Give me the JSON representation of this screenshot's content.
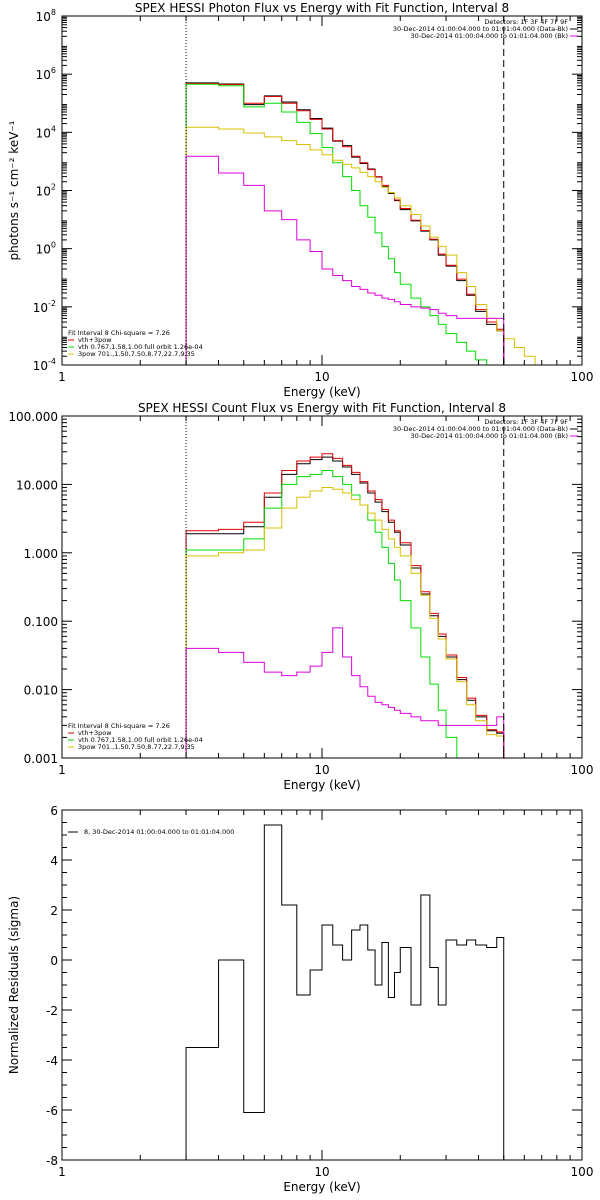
{
  "colors": {
    "total": "#000000",
    "fit": "#e00000",
    "thermal": "#00dd00",
    "powerlaw": "#d8c000",
    "background": "#dd00dd",
    "frame": "#000000"
  },
  "chart_data": [
    {
      "type": "line",
      "title": "SPEX HESSI Photon Flux vs Energy with Fit Function, Interval 8",
      "xlabel": "Energy (keV)",
      "ylabel": "photons s⁻¹ cm⁻² keV⁻¹",
      "xscale": "log",
      "yscale": "log",
      "xlim": [
        1,
        100
      ],
      "ylim": [
        0.0001,
        100000000
      ],
      "xticks": [
        {
          "v": 1,
          "label": "1"
        },
        {
          "v": 10,
          "label": "10"
        },
        {
          "v": 100,
          "label": "100"
        }
      ],
      "yticks": [
        {
          "v": 0.0001,
          "base": "10",
          "exp": "-4"
        },
        {
          "v": 0.01,
          "base": "10",
          "exp": "-2"
        },
        {
          "v": 1,
          "base": "10",
          "exp": "0"
        },
        {
          "v": 100,
          "base": "10",
          "exp": "2"
        },
        {
          "v": 10000,
          "base": "10",
          "exp": "4"
        },
        {
          "v": 1000000,
          "base": "10",
          "exp": "6"
        },
        {
          "v": 100000000,
          "base": "10",
          "exp": "8"
        }
      ],
      "vlines": [
        {
          "x": 3,
          "style": "dotted"
        },
        {
          "x": 50,
          "style": "dashed"
        }
      ],
      "legend_right": [
        {
          "text": "Detectors: 1F 3F 4F 7F 9F",
          "color": ""
        },
        {
          "text": "30-Dec-2014 01:00:04.000 to 01:01:04.000 (Data-Bk)",
          "color": "total"
        },
        {
          "text": "30-Dec-2014 01:00:04.000 to 01:01:04.000 (Bk)",
          "color": "background"
        }
      ],
      "legend_left": [
        {
          "text": "Fit Interval 8    Chi-square = 7.26",
          "color": ""
        },
        {
          "text": "vth+3pow",
          "color": "fit"
        },
        {
          "text": "vth 0.767,1.58,1.00  full orbit 1.26e-04",
          "color": "thermal"
        },
        {
          "text": "3pow 701.,1.50,7.50,8.77,22.7,9.35",
          "color": "powerlaw"
        }
      ],
      "series": [
        {
          "color": "total",
          "edges": [
            3,
            4,
            5,
            6,
            7,
            8,
            9,
            10,
            11,
            12,
            13,
            14,
            15,
            16,
            17,
            18,
            19,
            20,
            22,
            24,
            26,
            28,
            30,
            33,
            36,
            39,
            43,
            47,
            50
          ],
          "values": [
            500000,
            460000,
            90000,
            180000,
            110000,
            60000,
            30000,
            14000,
            5000,
            3500,
            1400,
            850,
            550,
            290,
            140,
            80,
            45,
            22,
            9,
            4,
            2,
            0.6,
            0.25,
            0.08,
            0.025,
            0.007,
            0.0025,
            0.0015
          ]
        },
        {
          "color": "fit",
          "edges": [
            3,
            4,
            5,
            6,
            7,
            8,
            9,
            10,
            11,
            12,
            13,
            14,
            15,
            16,
            17,
            18,
            19,
            20,
            22,
            24,
            26,
            28,
            30,
            33,
            36,
            39,
            43,
            47,
            50
          ],
          "values": [
            480000,
            440000,
            100000,
            170000,
            100000,
            55000,
            28000,
            13000,
            5200,
            3200,
            1500,
            900,
            520,
            300,
            150,
            85,
            47,
            24,
            9.5,
            4.2,
            2.1,
            0.65,
            0.27,
            0.09,
            0.027,
            0.008,
            0.003,
            0.0017
          ]
        },
        {
          "color": "thermal",
          "edges": [
            3,
            4,
            5,
            6,
            7,
            8,
            9,
            10,
            11,
            12,
            13,
            14,
            15,
            16,
            17,
            18,
            19,
            20,
            22,
            24,
            26,
            28,
            30,
            33,
            36,
            39,
            43,
            47,
            50
          ],
          "values": [
            450000,
            400000,
            75000,
            100000,
            50000,
            22000,
            9000,
            3000,
            900,
            300,
            100,
            30,
            12,
            3.5,
            1.2,
            0.45,
            0.15,
            0.06,
            0.02,
            0.01,
            0.005,
            0.0025,
            0.0012,
            0.0006,
            0.0003,
            0.00015,
            0.0001,
            0.0001
          ]
        },
        {
          "color": "powerlaw",
          "edges": [
            3,
            4,
            5,
            6,
            7,
            8,
            9,
            10,
            11,
            12,
            13,
            14,
            15,
            16,
            17,
            18,
            19,
            20,
            22,
            24,
            26,
            28,
            30,
            33,
            36,
            39,
            43,
            47,
            50,
            55,
            60,
            66,
            72,
            80
          ],
          "values": [
            15000,
            13000,
            9500,
            7000,
            5200,
            3800,
            2500,
            1700,
            1100,
            800,
            600,
            420,
            300,
            200,
            130,
            85,
            55,
            30,
            15,
            6,
            2.5,
            1.2,
            0.6,
            0.15,
            0.05,
            0.012,
            0.004,
            0.0015,
            0.0008,
            0.0004,
            0.0002,
            0.0001,
            0.0001
          ]
        },
        {
          "color": "background",
          "edges": [
            3,
            4,
            5,
            6,
            7,
            8,
            9,
            10,
            11,
            12,
            13,
            14,
            15,
            16,
            17,
            18,
            19,
            20,
            22,
            24,
            26,
            28,
            30,
            33,
            36,
            39,
            43,
            47,
            50
          ],
          "values": [
            1500,
            400,
            150,
            20,
            10,
            2,
            0.8,
            0.2,
            0.12,
            0.08,
            0.05,
            0.04,
            0.03,
            0.025,
            0.02,
            0.018,
            0.015,
            0.012,
            0.01,
            0.009,
            0.008,
            0.006,
            0.005,
            0.004,
            0.004,
            0.004,
            0.004,
            0.004
          ]
        }
      ]
    },
    {
      "type": "line",
      "title": "SPEX HESSI Count Flux vs Energy with Fit Function, Interval 8",
      "xlabel": "Energy (keV)",
      "ylabel": "",
      "xscale": "log",
      "yscale": "log",
      "xlim": [
        1,
        100
      ],
      "ylim": [
        0.001,
        100
      ],
      "xticks": [
        {
          "v": 1,
          "label": "1"
        },
        {
          "v": 10,
          "label": "10"
        },
        {
          "v": 100,
          "label": "100"
        }
      ],
      "yticks": [
        {
          "v": 0.001,
          "label": "0.001"
        },
        {
          "v": 0.01,
          "label": "0.010"
        },
        {
          "v": 0.1,
          "label": "0.100"
        },
        {
          "v": 1,
          "label": "1.000"
        },
        {
          "v": 10,
          "label": "10.000"
        },
        {
          "v": 100,
          "label": "100.000"
        }
      ],
      "vlines": [
        {
          "x": 3,
          "style": "dotted"
        },
        {
          "x": 50,
          "style": "dashed"
        }
      ],
      "legend_right": [
        {
          "text": "Detectors: 1F 3F 4F 7F 9F",
          "color": ""
        },
        {
          "text": "30-Dec-2014 01:00:04.000 to 01:01:04.000 (Data-Bk)",
          "color": "total"
        },
        {
          "text": "30-Dec-2014 01:00:04.000 to 01:01:04.000 (Bk)",
          "color": "background"
        }
      ],
      "legend_left": [
        {
          "text": "Fit Interval 8    Chi-square = 7.26",
          "color": ""
        },
        {
          "text": "vth+3pow",
          "color": "fit"
        },
        {
          "text": "vth 0.767,1.58,1.00  full orbit 1.26e-04",
          "color": "thermal"
        },
        {
          "text": "3pow 701.,1.50,7.50,8.77,22.7,9.35",
          "color": "powerlaw"
        }
      ],
      "series": [
        {
          "color": "total",
          "edges": [
            3,
            4,
            5,
            6,
            7,
            8,
            9,
            10,
            11,
            12,
            13,
            14,
            15,
            16,
            17,
            18,
            19,
            20,
            22,
            24,
            26,
            28,
            30,
            33,
            36,
            39,
            43,
            47,
            50
          ],
          "values": [
            1.9,
            1.9,
            2.4,
            6.5,
            14,
            20,
            23,
            25,
            22,
            18,
            14,
            10.5,
            7.5,
            5.5,
            4,
            2.8,
            2,
            1.3,
            0.6,
            0.25,
            0.12,
            0.06,
            0.03,
            0.014,
            0.007,
            0.004,
            0.0025,
            0.0023
          ]
        },
        {
          "color": "fit",
          "edges": [
            3,
            4,
            5,
            6,
            7,
            8,
            9,
            10,
            11,
            12,
            13,
            14,
            15,
            16,
            17,
            18,
            19,
            20,
            22,
            24,
            26,
            28,
            30,
            33,
            36,
            39,
            43,
            47,
            50
          ],
          "values": [
            2.1,
            2.2,
            2.8,
            7.5,
            16,
            22,
            25,
            28,
            24,
            19,
            15,
            11,
            8,
            6,
            4.3,
            3,
            2.1,
            1.4,
            0.65,
            0.27,
            0.13,
            0.065,
            0.032,
            0.015,
            0.0075,
            0.0042,
            0.0026,
            0.0024
          ]
        },
        {
          "color": "thermal",
          "edges": [
            3,
            4,
            5,
            6,
            7,
            8,
            9,
            10,
            11,
            12,
            13,
            14,
            15,
            16,
            17,
            18,
            19,
            20,
            22,
            24,
            26,
            28,
            30,
            33,
            36,
            39,
            43,
            47,
            50
          ],
          "values": [
            1.1,
            1.1,
            1.6,
            4.5,
            10,
            13,
            14,
            16,
            13,
            10,
            7,
            5,
            3,
            2,
            1.2,
            0.7,
            0.4,
            0.2,
            0.08,
            0.03,
            0.012,
            0.005,
            0.002,
            0.001,
            0.001,
            0.001,
            0.001,
            0.001
          ]
        },
        {
          "color": "powerlaw",
          "edges": [
            3,
            4,
            5,
            6,
            7,
            8,
            9,
            10,
            11,
            12,
            13,
            14,
            15,
            16,
            17,
            18,
            19,
            20,
            22,
            24,
            26,
            28,
            30,
            33,
            36,
            39,
            43,
            47,
            50
          ],
          "values": [
            0.9,
            1,
            1.1,
            2.3,
            4.5,
            6.5,
            8,
            9,
            8.5,
            7.5,
            6,
            5,
            3.8,
            3,
            2.2,
            1.6,
            1.2,
            0.9,
            0.5,
            0.24,
            0.11,
            0.055,
            0.028,
            0.013,
            0.006,
            0.0035,
            0.0022,
            0.0021
          ]
        },
        {
          "color": "background",
          "edges": [
            3,
            4,
            5,
            6,
            7,
            8,
            9,
            10,
            11,
            12,
            13,
            14,
            15,
            16,
            17,
            18,
            19,
            20,
            22,
            24,
            26,
            28,
            30,
            33,
            36,
            39,
            43,
            47,
            50
          ],
          "values": [
            0.04,
            0.035,
            0.025,
            0.018,
            0.016,
            0.018,
            0.022,
            0.035,
            0.08,
            0.03,
            0.016,
            0.011,
            0.008,
            0.0065,
            0.006,
            0.0055,
            0.005,
            0.0045,
            0.004,
            0.0035,
            0.0035,
            0.003,
            0.003,
            0.003,
            0.003,
            0.003,
            0.003,
            0.004
          ]
        }
      ]
    },
    {
      "type": "line",
      "title": "",
      "xlabel": "Energy (keV)",
      "ylabel": "Normalized Residuals (sigma)",
      "xscale": "log",
      "yscale": "linear",
      "xlim": [
        1,
        100
      ],
      "ylim": [
        -8,
        6
      ],
      "xticks": [
        {
          "v": 1,
          "label": "1"
        },
        {
          "v": 10,
          "label": "10"
        },
        {
          "v": 100,
          "label": "100"
        }
      ],
      "yticks": [
        {
          "v": -8,
          "label": "-8"
        },
        {
          "v": -6,
          "label": "-6"
        },
        {
          "v": -4,
          "label": "-4"
        },
        {
          "v": -2,
          "label": "-2"
        },
        {
          "v": 0,
          "label": "0"
        },
        {
          "v": 2,
          "label": "2"
        },
        {
          "v": 4,
          "label": "4"
        },
        {
          "v": 6,
          "label": "6"
        }
      ],
      "vlines": [],
      "legend_right": [],
      "legend_left": [
        {
          "text": "8, 30-Dec-2014 01:00:04.000 to 01:01:04.000",
          "color": "total"
        }
      ],
      "series": [
        {
          "color": "total",
          "edges": [
            3,
            4,
            5,
            6,
            7,
            8,
            9,
            10,
            11,
            12,
            13,
            14,
            15,
            16,
            17,
            18,
            19,
            20,
            22,
            24,
            26,
            28,
            30,
            33,
            36,
            39,
            43,
            47,
            50
          ],
          "values": [
            -3.5,
            0,
            -6.1,
            5.4,
            2.2,
            -1.4,
            -0.4,
            1.4,
            0.6,
            0,
            1.2,
            1.4,
            0.4,
            -1,
            0.7,
            -1.5,
            -0.5,
            0.5,
            -1.8,
            2.6,
            -0.3,
            -1.8,
            0.8,
            0.6,
            0.8,
            0.6,
            0.5,
            0.9
          ]
        }
      ]
    }
  ]
}
